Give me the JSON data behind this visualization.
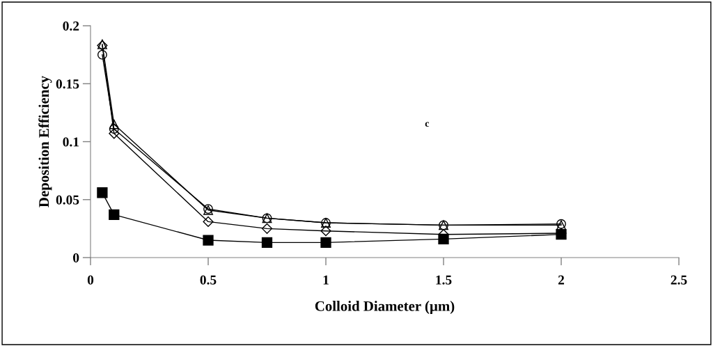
{
  "chart_data": {
    "type": "line",
    "xlabel": "Colloid Diameter (µm)",
    "ylabel": "Deposition Efficiency",
    "x": [
      0.05,
      0.1,
      0.5,
      0.75,
      1,
      1.5,
      2
    ],
    "series": [
      {
        "color": "#000000",
        "marker": "square",
        "values": [
          0.056,
          0.037,
          0.015,
          0.013,
          0.013,
          0.016,
          0.02
        ]
      },
      {
        "color": "#000000",
        "marker": "diamond",
        "values": [
          0.183,
          0.107,
          0.031,
          0.025,
          0.023,
          0.02,
          0.021
        ]
      },
      {
        "color": "#000000",
        "marker": "triangle",
        "values": [
          0.184,
          0.115,
          0.041,
          0.034,
          0.03,
          0.028,
          0.028
        ]
      },
      {
        "color": "#000000",
        "marker": "circle",
        "values": [
          0.175,
          0.111,
          0.042,
          0.034,
          0.03,
          0.028,
          0.029
        ]
      }
    ],
    "xlim": [
      0,
      2.5
    ],
    "xticks": [
      0,
      0.5,
      1,
      1.5,
      2,
      2.5
    ],
    "ylim": [
      0,
      0.2
    ],
    "yticks": [
      0,
      0.05,
      0.1,
      0.15,
      0.2
    ],
    "annotations": [
      "c"
    ],
    "grid": false,
    "legend": false,
    "line_style": "solid"
  }
}
